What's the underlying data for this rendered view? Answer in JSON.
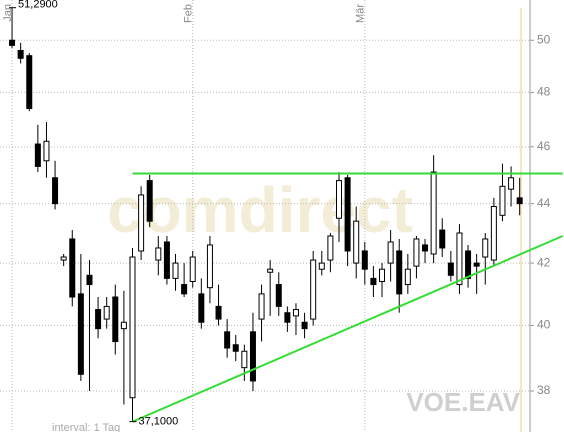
{
  "chart_data": {
    "type": "candlestick",
    "categories": [
      "Jan",
      null,
      null,
      null,
      null,
      null,
      null,
      null,
      null,
      null,
      null,
      null,
      null,
      null,
      null,
      null,
      null,
      null,
      null,
      null,
      null,
      "Feb",
      null,
      null,
      null,
      null,
      null,
      null,
      null,
      null,
      null,
      null,
      null,
      null,
      null,
      null,
      null,
      null,
      null,
      null,
      null,
      "Mär",
      null,
      null,
      null,
      null,
      null,
      null,
      null,
      null,
      null,
      null,
      null,
      null,
      null,
      null,
      null,
      null,
      null,
      null
    ],
    "open": [
      50.0,
      49.6,
      49.4,
      46.1,
      45.5,
      44.9,
      42.1,
      42.8,
      41.0,
      41.6,
      40.5,
      40.2,
      40.9,
      39.9,
      37.8,
      42.4,
      44.8,
      42.1,
      42.7,
      41.5,
      41.3,
      41.4,
      41.0,
      41.2,
      40.6,
      39.8,
      39.4,
      38.7,
      39.8,
      40.2,
      41.7,
      41.3,
      40.4,
      40.3,
      40.1,
      40.2,
      41.8,
      42.1,
      43.5,
      44.9,
      42.0,
      42.4,
      41.5,
      41.4,
      42.0,
      42.4,
      41.3,
      41.9,
      42.6,
      42.3,
      43.1,
      42.0,
      41.3,
      42.4,
      42.0,
      42.2,
      42.1,
      43.6,
      44.5,
      44.2
    ],
    "high": [
      51.29,
      49.9,
      49.5,
      46.8,
      46.9,
      45.5,
      42.3,
      43.1,
      42.3,
      42.1,
      40.9,
      40.9,
      41.3,
      41.1,
      42.5,
      44.6,
      45.0,
      42.9,
      42.9,
      42.3,
      42.0,
      42.4,
      41.5,
      42.9,
      41.3,
      40.2,
      39.7,
      39.4,
      40.4,
      41.3,
      42.1,
      41.7,
      40.6,
      40.7,
      40.4,
      42.4,
      42.4,
      43.0,
      45.1,
      45.0,
      43.9,
      42.7,
      41.9,
      42.0,
      43.1,
      42.8,
      42.3,
      42.9,
      42.8,
      45.7,
      43.5,
      42.4,
      43.3,
      42.6,
      42.3,
      43.0,
      44.2,
      45.4,
      45.3,
      44.9
    ],
    "low": [
      49.7,
      49.1,
      47.3,
      45.1,
      44.9,
      43.8,
      41.9,
      40.6,
      38.3,
      38.0,
      39.6,
      39.9,
      39.1,
      37.6,
      37.1,
      42.1,
      43.2,
      41.6,
      41.3,
      41.1,
      40.9,
      41.2,
      39.9,
      40.7,
      40.0,
      39.0,
      38.9,
      38.3,
      38.0,
      39.5,
      40.3,
      40.3,
      39.8,
      39.7,
      39.6,
      40.0,
      41.6,
      41.7,
      42.7,
      41.9,
      41.5,
      41.3,
      40.9,
      40.9,
      41.4,
      40.4,
      41.0,
      41.5,
      42.0,
      42.0,
      42.2,
      41.4,
      41.0,
      41.2,
      41.0,
      41.3,
      41.9,
      43.4,
      43.9,
      43.6
    ],
    "close": [
      49.8,
      49.3,
      47.4,
      45.3,
      46.2,
      44.0,
      42.2,
      40.9,
      38.5,
      41.3,
      39.9,
      40.6,
      39.5,
      40.1,
      42.2,
      44.3,
      43.4,
      42.5,
      41.5,
      42.0,
      41.0,
      42.2,
      40.1,
      42.6,
      40.2,
      39.3,
      39.2,
      39.2,
      38.3,
      41.0,
      41.8,
      40.6,
      40.1,
      40.5,
      39.9,
      42.1,
      42.0,
      42.9,
      44.8,
      42.4,
      43.4,
      41.8,
      41.3,
      41.8,
      42.7,
      41.0,
      41.8,
      42.8,
      42.4,
      45.1,
      42.5,
      41.6,
      43.0,
      41.5,
      41.9,
      42.8,
      43.9,
      44.6,
      44.9,
      44.0
    ],
    "xlim": [
      -1.4,
      60.2
    ],
    "ylim": [
      36.8,
      51.6
    ],
    "yticks": [
      38,
      40,
      42,
      44,
      46,
      48,
      50
    ],
    "log_scale": true,
    "grid": true,
    "up_color": "#ffffff",
    "down_color": "#000000",
    "trendlines": [
      {
        "color": "#33dd33",
        "x": [
          14,
          64
        ],
        "y": [
          45.05,
          45.05
        ]
      },
      {
        "color": "#33dd33",
        "x": [
          14,
          64
        ],
        "y": [
          37.1,
          42.9
        ]
      }
    ],
    "annotations": [
      {
        "text": "51,2900",
        "x": 0,
        "y": 51.29
      },
      {
        "text": "37,1000",
        "x": 14,
        "y": 37.1
      }
    ],
    "symbol": "VOE.EAV",
    "watermark": "comdirect",
    "footer": "interval: 1 Tag"
  }
}
